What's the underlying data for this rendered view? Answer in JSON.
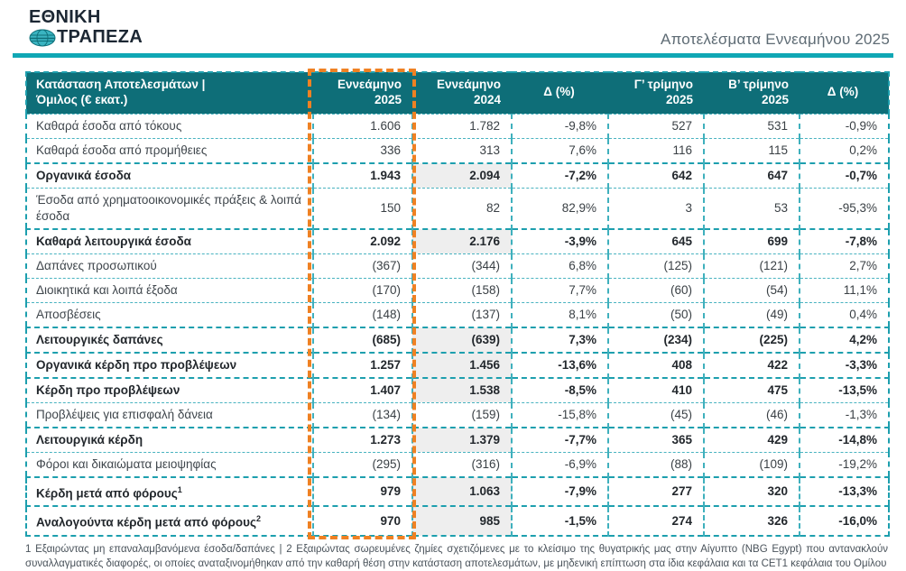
{
  "brand": {
    "line1": "ΕΘΝΙΚΗ",
    "line2": "ΤΡΑΠΕΖΑ"
  },
  "header": {
    "title": "Αποτελέσματα Εννεαμήνου 2025"
  },
  "colors": {
    "header_teal": "#0e6e78",
    "accent_teal": "#10a7b5",
    "border_teal": "#3fb0bd",
    "highlight_orange": "#ef8123",
    "shaded_cell": "#eeeeee"
  },
  "table": {
    "columns": [
      {
        "l1": "Κατάσταση Αποτελεσμάτων |",
        "l2": "Όμιλος (€ εκατ.)"
      },
      {
        "l1": "Εννεάμηνο",
        "l2": "2025"
      },
      {
        "l1": "Εννεάμηνο",
        "l2": "2024"
      },
      {
        "l1": "Δ (%)",
        "l2": ""
      },
      {
        "l1": "Γ’ τρίμηνο",
        "l2": "2025"
      },
      {
        "l1": "Β’ τρίμηνο",
        "l2": "2025"
      },
      {
        "l1": "Δ (%)",
        "l2": ""
      }
    ],
    "rows": [
      {
        "label": "Καθαρά έσοδα από τόκους",
        "sup": "",
        "bold": false,
        "values": [
          "1.606",
          "1.782",
          "-9,8%",
          "527",
          "531",
          "-0,9%"
        ]
      },
      {
        "label": "Καθαρά έσοδα από προμήθειες",
        "sup": "",
        "bold": false,
        "values": [
          "336",
          "313",
          "7,6%",
          "116",
          "115",
          "0,2%"
        ]
      },
      {
        "label": "Οργανικά έσοδα",
        "sup": "",
        "bold": true,
        "values": [
          "1.943",
          "2.094",
          "-7,2%",
          "642",
          "647",
          "-0,7%"
        ]
      },
      {
        "label": "Έσοδα από χρηματοοικονομικές πράξεις & λοιπά έσοδα",
        "sup": "",
        "bold": false,
        "values": [
          "150",
          "82",
          "82,9%",
          "3",
          "53",
          "-95,3%"
        ]
      },
      {
        "label": "Καθαρά λειτουργικά έσοδα",
        "sup": "",
        "bold": true,
        "values": [
          "2.092",
          "2.176",
          "-3,9%",
          "645",
          "699",
          "-7,8%"
        ]
      },
      {
        "label": "Δαπάνες προσωπικού",
        "sup": "",
        "bold": false,
        "values": [
          "(367)",
          "(344)",
          "6,8%",
          "(125)",
          "(121)",
          "2,7%"
        ]
      },
      {
        "label": "Διοικητικά και λοιπά έξοδα",
        "sup": "",
        "bold": false,
        "values": [
          "(170)",
          "(158)",
          "7,7%",
          "(60)",
          "(54)",
          "11,1%"
        ]
      },
      {
        "label": "Αποσβέσεις",
        "sup": "",
        "bold": false,
        "values": [
          "(148)",
          "(137)",
          "8,1%",
          "(50)",
          "(49)",
          "0,4%"
        ]
      },
      {
        "label": "Λειτουργικές δαπάνες",
        "sup": "",
        "bold": true,
        "values": [
          "(685)",
          "(639)",
          "7,3%",
          "(234)",
          "(225)",
          "4,2%"
        ]
      },
      {
        "label": "Οργανικά κέρδη προ προβλέψεων",
        "sup": "",
        "bold": true,
        "values": [
          "1.257",
          "1.456",
          "-13,6%",
          "408",
          "422",
          "-3,3%"
        ]
      },
      {
        "label": "Κέρδη προ προβλέψεων",
        "sup": "",
        "bold": true,
        "values": [
          "1.407",
          "1.538",
          "-8,5%",
          "410",
          "475",
          "-13,5%"
        ]
      },
      {
        "label": "Προβλέψεις για επισφαλή δάνεια",
        "sup": "",
        "bold": false,
        "values": [
          "(134)",
          "(159)",
          "-15,8%",
          "(45)",
          "(46)",
          "-1,3%"
        ]
      },
      {
        "label": "Λειτουργικά κέρδη",
        "sup": "",
        "bold": true,
        "values": [
          "1.273",
          "1.379",
          "-7,7%",
          "365",
          "429",
          "-14,8%"
        ]
      },
      {
        "label": "Φόροι και δικαιώματα μειοψηφίας",
        "sup": "",
        "bold": false,
        "values": [
          "(295)",
          "(316)",
          "-6,9%",
          "(88)",
          "(109)",
          "-19,2%"
        ]
      },
      {
        "label": "Κέρδη μετά από φόρους",
        "sup": "1",
        "bold": true,
        "values": [
          "979",
          "1.063",
          "-7,9%",
          "277",
          "320",
          "-13,3%"
        ]
      },
      {
        "label": "Αναλογούντα κέρδη μετά από φόρους",
        "sup": "2",
        "bold": true,
        "values": [
          "970",
          "985",
          "-1,5%",
          "274",
          "326",
          "-16,0%"
        ]
      }
    ]
  },
  "footnote": "1 Εξαιρώντας μη επαναλαμβανόμενα έσοδα/δαπάνες | 2 Εξαιρώντας σωρευμένες ζημίες σχετιζόμενες με το κλείσιμο της θυγατρικής μας στην Αίγυπτο (NBG Egypt) που αντανακλούν συναλλαγματικές διαφορές, οι οποίες αναταξινομήθηκαν από την καθαρή θέση στην κατάσταση αποτελεσμάτων, με μηδενική επίπτωση στα ίδια κεφάλαια και τα CET1 κεφάλαια του Ομίλου"
}
